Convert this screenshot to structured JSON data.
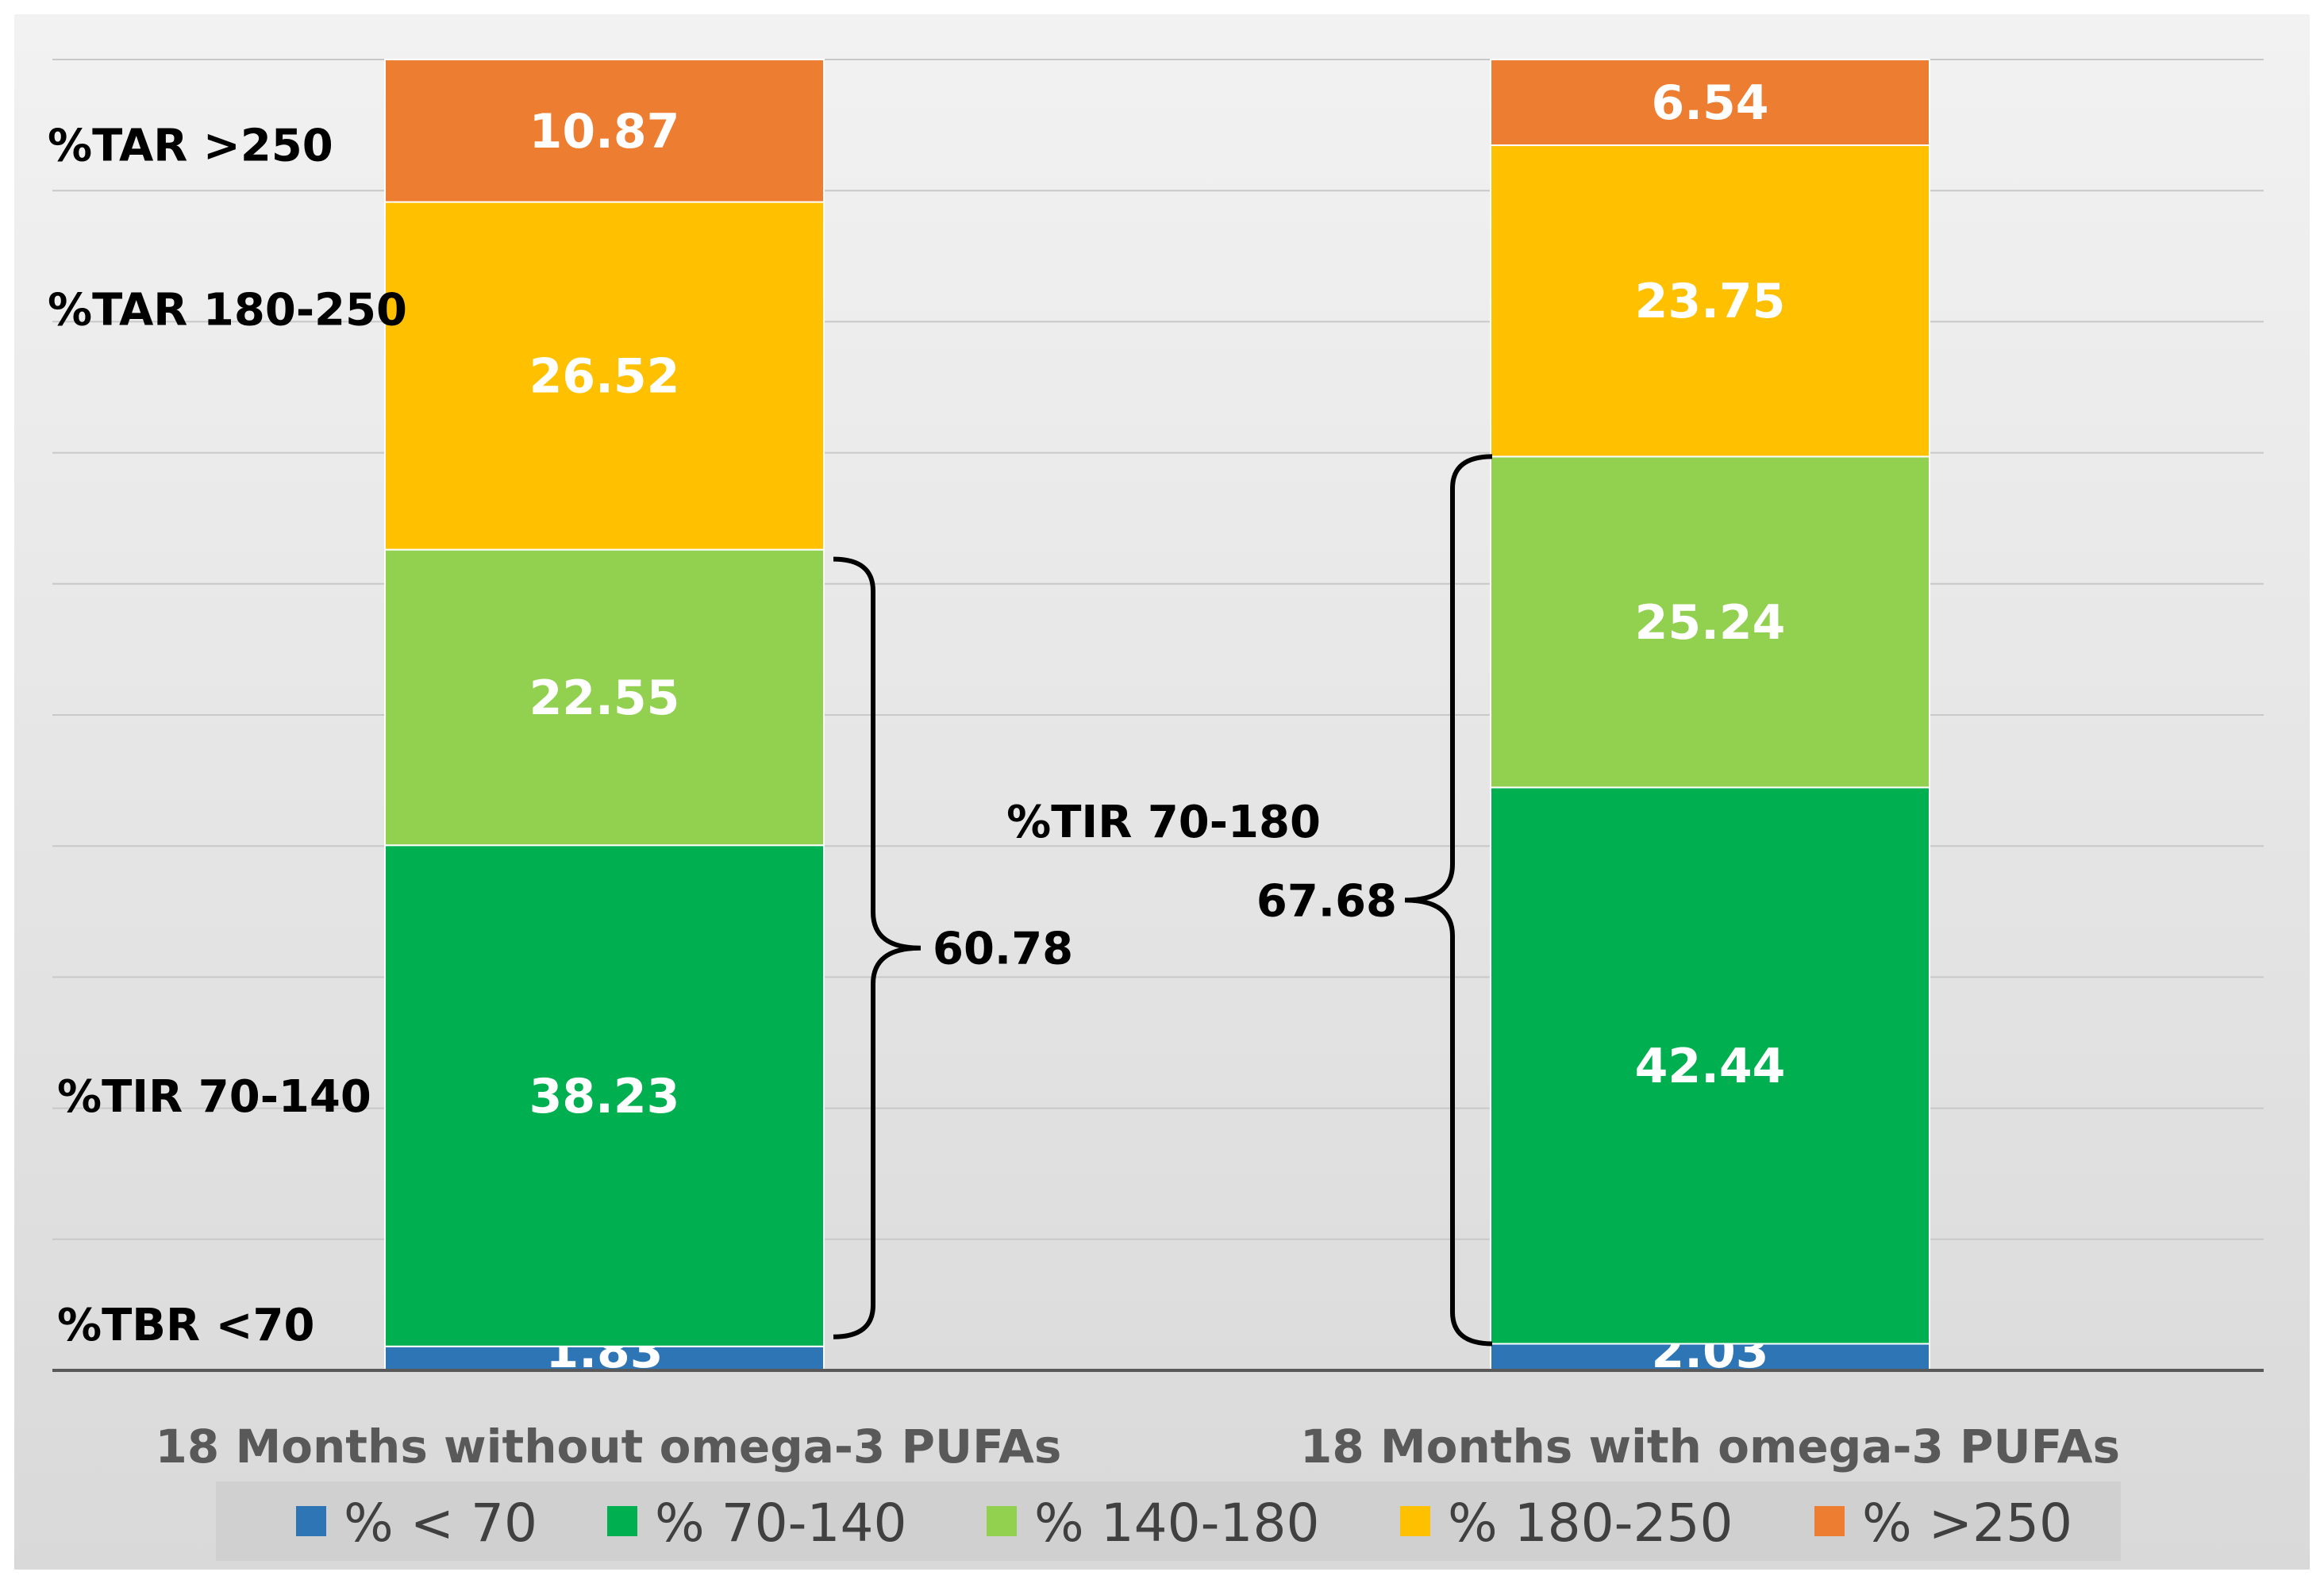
{
  "chart_data": {
    "type": "bar",
    "stacked": true,
    "title": "",
    "xlabel": "",
    "ylabel": "",
    "ylim": [
      0,
      100
    ],
    "grid": true,
    "legend_position": "bottom",
    "categories": [
      "18 Months without omega-3 PUFAs",
      "18 Months with omega-3 PUFAs"
    ],
    "series": [
      {
        "name": "% < 70",
        "color": "#2E75B6",
        "values": [
          1.83,
          2.03
        ],
        "labels": [
          "1.83",
          "2.03"
        ]
      },
      {
        "name": "% 70-140",
        "color": "#00B050",
        "values": [
          38.23,
          42.44
        ],
        "labels": [
          "38.23",
          "42.44"
        ]
      },
      {
        "name": "% 140-180",
        "color": "#92D050",
        "values": [
          22.55,
          25.24
        ],
        "labels": [
          "22.55",
          "25.24"
        ]
      },
      {
        "name": "% 180-250",
        "color": "#FFC000",
        "values": [
          26.52,
          23.75
        ],
        "labels": [
          "26.52",
          "23.75"
        ]
      },
      {
        "name": "% >250",
        "color": "#ED7D31",
        "values": [
          10.87,
          6.54
        ],
        "labels": [
          "10.87",
          "6.54"
        ]
      }
    ],
    "side_labels": [
      {
        "text": "%TAR >250",
        "series": 4
      },
      {
        "text": "%TAR 180-250",
        "series": 3
      },
      {
        "text": "%TIR 70-140",
        "series": 1
      },
      {
        "text": "%TBR <70",
        "series": 0
      }
    ],
    "tir_annotation": {
      "title": "%TIR 70-180",
      "values": [
        60.78,
        67.68
      ],
      "labels": [
        "60.78",
        "67.68"
      ]
    }
  }
}
